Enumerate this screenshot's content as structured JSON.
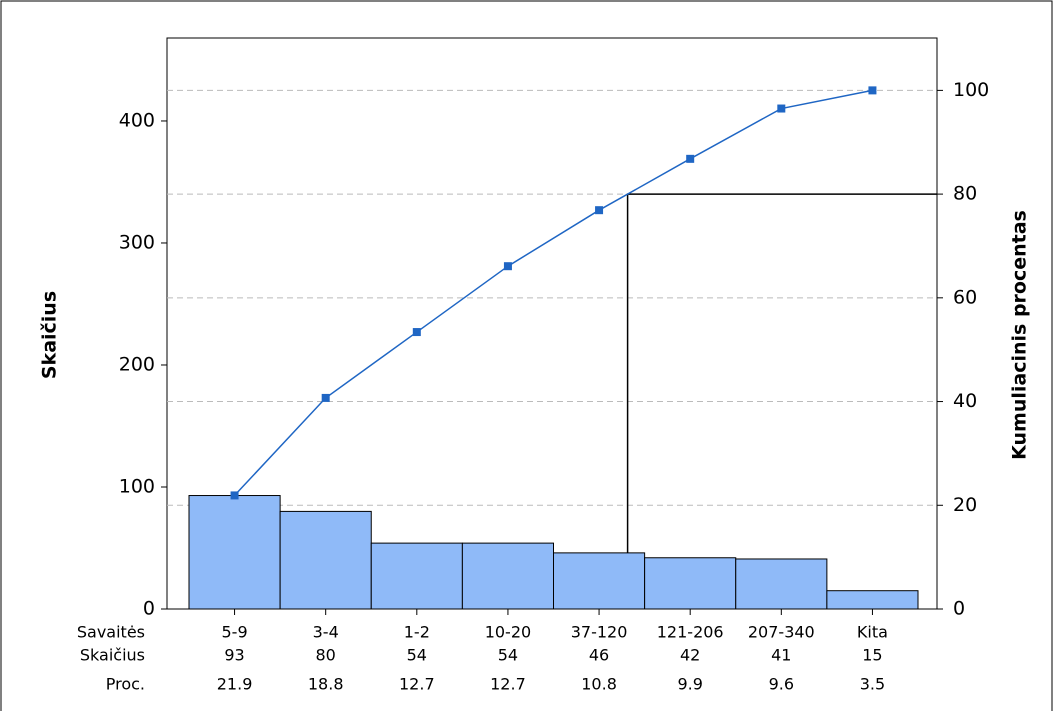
{
  "chart_data": {
    "type": "pareto",
    "ylabel": "Skaičius",
    "y2label": "Kumuliacinis procentas",
    "categories_label": "Savaitės",
    "count_label": "Skaičius",
    "percent_label": "Proc.",
    "categories": [
      "5-9",
      "3-4",
      "1-2",
      "10-20",
      "37-120",
      "121-206",
      "207-340",
      "Kita"
    ],
    "values": [
      93,
      80,
      54,
      54,
      46,
      42,
      41,
      15
    ],
    "percent": [
      21.9,
      18.8,
      12.7,
      12.7,
      10.8,
      9.9,
      9.6,
      3.5
    ],
    "color": "#8fbaf8",
    "cumulative": {
      "values": [
        21.9,
        40.7,
        53.4,
        66.1,
        76.9,
        86.8,
        96.5,
        100
      ],
      "color": "#1f66c4",
      "axis": "y2"
    },
    "ylim": [
      0,
      468
    ],
    "yticks": [
      0,
      100,
      200,
      300,
      400
    ],
    "y2lim": [
      0,
      110.1
    ],
    "y2ticks": [
      0,
      20,
      40,
      60,
      80,
      100
    ],
    "grid": true,
    "threshold": 80
  }
}
